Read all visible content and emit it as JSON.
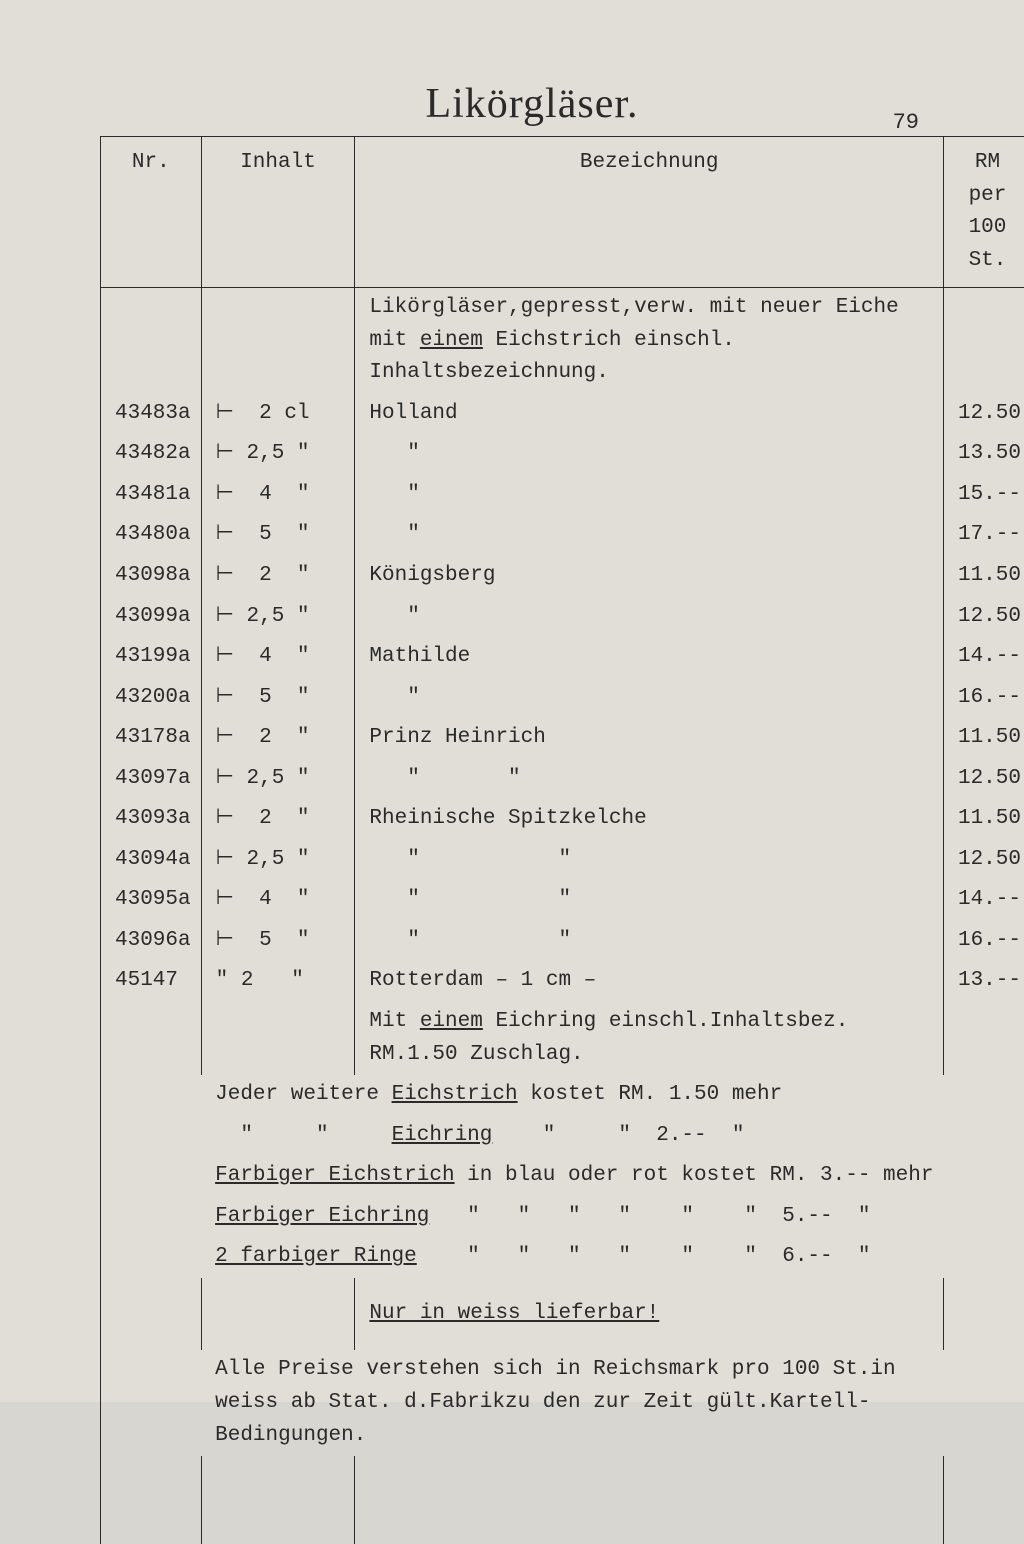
{
  "page": {
    "title": "Likörgläser.",
    "number": "79"
  },
  "table": {
    "headers": {
      "nr": "Nr.",
      "inhalt": "Inhalt",
      "bez": "Bezeichnung",
      "rm": "RM per 100 St."
    },
    "intro": "Likörgläser,gepresst,verw. mit neuer Eiche mit ",
    "intro_u": "einem",
    "intro2": " Eichstrich einschl. Inhaltsbezeichnung.",
    "rows": [
      {
        "nr": "43483a",
        "inh": "⊢  2 cl",
        "bez": "Holland",
        "rm": "12.50"
      },
      {
        "nr": "43482a",
        "inh": "⊢ 2,5 \"",
        "bez": "   \"",
        "rm": "13.50"
      },
      {
        "nr": "43481a",
        "inh": "⊢  4  \"",
        "bez": "   \"",
        "rm": "15.--"
      },
      {
        "nr": "43480a",
        "inh": "⊢  5  \"",
        "bez": "   \"",
        "rm": "17.--"
      },
      {
        "nr": "43098a",
        "inh": "⊢  2  \"",
        "bez": "Königsberg",
        "rm": "11.50"
      },
      {
        "nr": "43099a",
        "inh": "⊢ 2,5 \"",
        "bez": "   \"",
        "rm": "12.50"
      },
      {
        "nr": "43199a",
        "inh": "⊢  4  \"",
        "bez": "Mathilde",
        "rm": "14.--"
      },
      {
        "nr": "43200a",
        "inh": "⊢  5  \"",
        "bez": "   \"",
        "rm": "16.--"
      },
      {
        "nr": "43178a",
        "inh": "⊢  2  \"",
        "bez": "Prinz Heinrich",
        "rm": "11.50"
      },
      {
        "nr": "43097a",
        "inh": "⊢ 2,5 \"",
        "bez": "   \"       \"",
        "rm": "12.50"
      },
      {
        "nr": "43093a",
        "inh": "⊢  2  \"",
        "bez": "Rheinische Spitzkelche",
        "rm": "11.50"
      },
      {
        "nr": "43094a",
        "inh": "⊢ 2,5 \"",
        "bez": "   \"           \"",
        "rm": "12.50"
      },
      {
        "nr": "43095a",
        "inh": "⊢  4  \"",
        "bez": "   \"           \"",
        "rm": "14.--"
      },
      {
        "nr": "43096a",
        "inh": "⊢  5  \"",
        "bez": "   \"           \"",
        "rm": "16.--"
      },
      {
        "nr": "45147",
        "inh": "\" 2   \"",
        "bez": "Rotterdam – 1 cm –",
        "rm": "13.--"
      }
    ],
    "note_eichring": {
      "pre": "Mit ",
      "u": "einem",
      "post": " Eichring einschl.Inhaltsbez. RM.1.50 Zuschlag."
    },
    "extra_lines": [
      {
        "pre": "Jeder weitere ",
        "u": "Eichstrich",
        "post": " kostet RM. 1.50 mehr"
      },
      {
        "pre": "  \"     \"     ",
        "u": "Eichring",
        "post": "    \"     \"  2.--  \""
      },
      {
        "pre": "",
        "u": "Farbiger Eichstrich",
        "post": " in blau oder rot kostet RM. 3.-- mehr"
      },
      {
        "pre": "",
        "u": "Farbiger Eichring",
        "post": "   \"   \"   \"   \"    \"    \"  5.--  \""
      },
      {
        "pre": "",
        "u": "2 farbiger Ringe",
        "post": "    \"   \"   \"   \"    \"    \"  6.--  \""
      }
    ],
    "only_white": "Nur in weiss lieferbar!",
    "footer": "Alle Preise verstehen sich in Reichsmark pro 100 St.in weiss ab Stat. d.Fabrikzu den zur Zeit gült.Kartell-Bedingungen."
  }
}
